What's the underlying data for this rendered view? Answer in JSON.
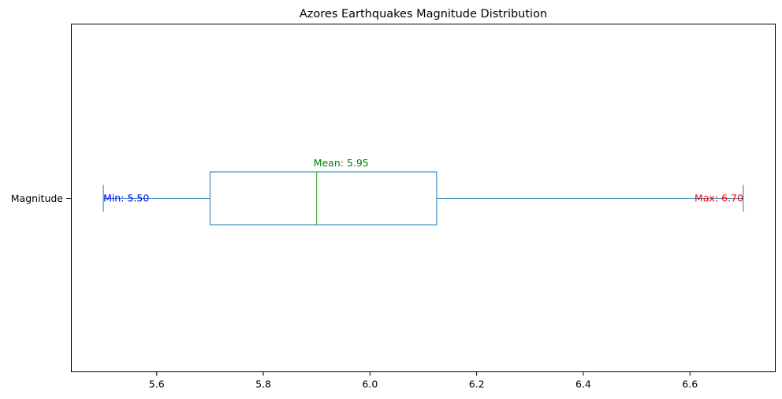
{
  "chart_data": {
    "type": "box",
    "orientation": "horizontal",
    "title": "Azores Earthquakes Magnitude Distribution",
    "xlabel": "",
    "ylabel": "",
    "xlim": [
      5.44,
      6.76
    ],
    "xticks": [
      5.6,
      5.8,
      6.0,
      6.2,
      6.4,
      6.6
    ],
    "xtick_labels": [
      "5.6",
      "5.8",
      "6.0",
      "6.2",
      "6.4",
      "6.6"
    ],
    "category": "Magnitude",
    "grid": false,
    "box": {
      "whisker_low": 5.5,
      "q1": 5.7,
      "median": 5.9,
      "q3": 6.125,
      "whisker_high": 6.7
    },
    "annotations": {
      "mean_label": "Mean: 5.95",
      "min_label": "Min: 5.50",
      "max_label": "Max: 6.70"
    },
    "colors": {
      "box": "#1f77b4",
      "median": "#2ca02c",
      "mean_text": "#008000",
      "min_text": "#0000ff",
      "max_text": "#ff0000",
      "axes": "#000000"
    }
  }
}
